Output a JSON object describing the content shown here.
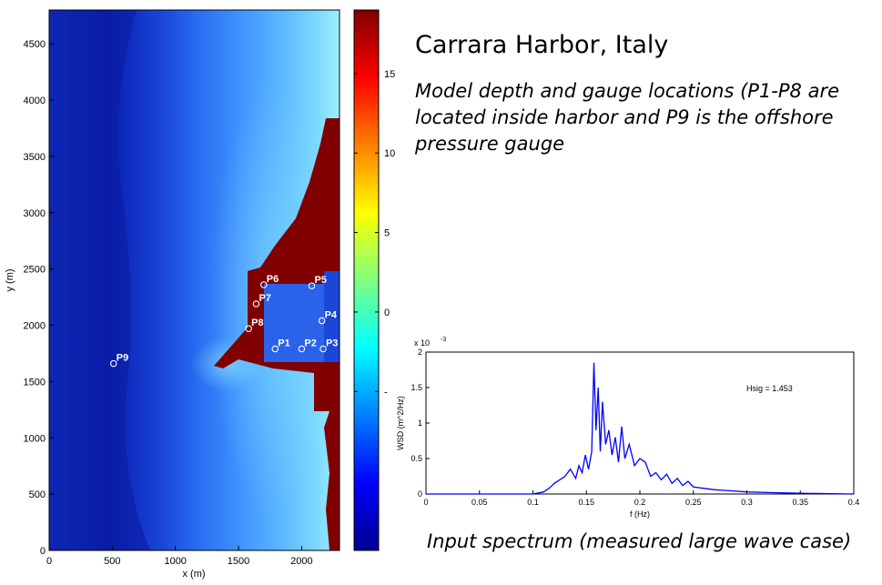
{
  "slide": {
    "title": "Carrara Harbor, Italy",
    "subtitle": "Model depth and gauge locations (P1-P8 are located inside harbor and P9 is the offshore pressure gauge",
    "caption": "Input spectrum (measured large wave case)"
  },
  "chart_data": [
    {
      "type": "heatmap",
      "xlabel": "x (m)",
      "ylabel": "y (m)",
      "xlim": [
        0,
        2300
      ],
      "ylim": [
        0,
        4800
      ],
      "xticks": [
        0,
        500,
        1000,
        1500,
        2000
      ],
      "yticks": [
        0,
        500,
        1000,
        1500,
        2000,
        2500,
        3000,
        3500,
        4000,
        4500
      ],
      "colorbar": {
        "ticks": [
          -5,
          0,
          5,
          10,
          15
        ],
        "tick_labels": [
          "-",
          "0",
          "5",
          "10",
          "15"
        ],
        "range": [
          -15,
          19
        ],
        "colormap": "jet"
      },
      "gauges": [
        {
          "name": "P1",
          "x": 1790,
          "y": 1790
        },
        {
          "name": "P2",
          "x": 2000,
          "y": 1790
        },
        {
          "name": "P3",
          "x": 2170,
          "y": 1790
        },
        {
          "name": "P4",
          "x": 2160,
          "y": 2040
        },
        {
          "name": "P5",
          "x": 2080,
          "y": 2350
        },
        {
          "name": "P6",
          "x": 1700,
          "y": 2360
        },
        {
          "name": "P7",
          "x": 1640,
          "y": 2190
        },
        {
          "name": "P8",
          "x": 1580,
          "y": 1970
        },
        {
          "name": "P9",
          "x": 510,
          "y": 1660
        }
      ]
    },
    {
      "type": "line",
      "xlabel": "f (Hz)",
      "ylabel": "WSD (m^2/Hz)",
      "xlim": [
        0,
        0.4
      ],
      "ylim": [
        0,
        0.002
      ],
      "xticks": [
        0,
        0.05,
        0.1,
        0.15,
        0.2,
        0.25,
        0.3,
        0.35,
        0.4
      ],
      "xtick_labels": [
        "0",
        "0.05",
        "0.1",
        "0.15",
        "0.2",
        "0.25",
        "0.3",
        "0.35",
        "0.4"
      ],
      "yticks": [
        0,
        0.5,
        1,
        1.5,
        2
      ],
      "ytick_labels": [
        "0",
        "0.5",
        "1",
        "1.5",
        "2"
      ],
      "y_exponent": "x 10",
      "y_exponent_power": "-3",
      "annotation": "Hsig = 1.453",
      "series_color": "#0000ff",
      "x": [
        0.0,
        0.1,
        0.11,
        0.115,
        0.12,
        0.125,
        0.13,
        0.135,
        0.14,
        0.143,
        0.146,
        0.149,
        0.152,
        0.155,
        0.157,
        0.159,
        0.161,
        0.163,
        0.165,
        0.168,
        0.171,
        0.174,
        0.177,
        0.18,
        0.183,
        0.186,
        0.19,
        0.195,
        0.2,
        0.205,
        0.21,
        0.215,
        0.22,
        0.225,
        0.23,
        0.235,
        0.24,
        0.245,
        0.25,
        0.26,
        0.27,
        0.28,
        0.29,
        0.3,
        0.32,
        0.35,
        0.4
      ],
      "y": [
        0.0,
        0.0,
        3e-05,
        8e-05,
        0.00015,
        0.0002,
        0.00025,
        0.00035,
        0.00022,
        0.0004,
        0.0003,
        0.00055,
        0.00035,
        0.0006,
        0.00185,
        0.0009,
        0.0015,
        0.0006,
        0.0013,
        0.0007,
        0.0009,
        0.00055,
        0.0008,
        0.00045,
        0.00095,
        0.0005,
        0.0007,
        0.0004,
        0.0005,
        0.00045,
        0.00025,
        0.0003,
        0.0002,
        0.00028,
        0.00015,
        0.00022,
        0.00012,
        0.00018,
        0.0001,
        8e-05,
        6e-05,
        5e-05,
        4e-05,
        3e-05,
        2e-05,
        1e-05,
        0.0
      ]
    }
  ]
}
